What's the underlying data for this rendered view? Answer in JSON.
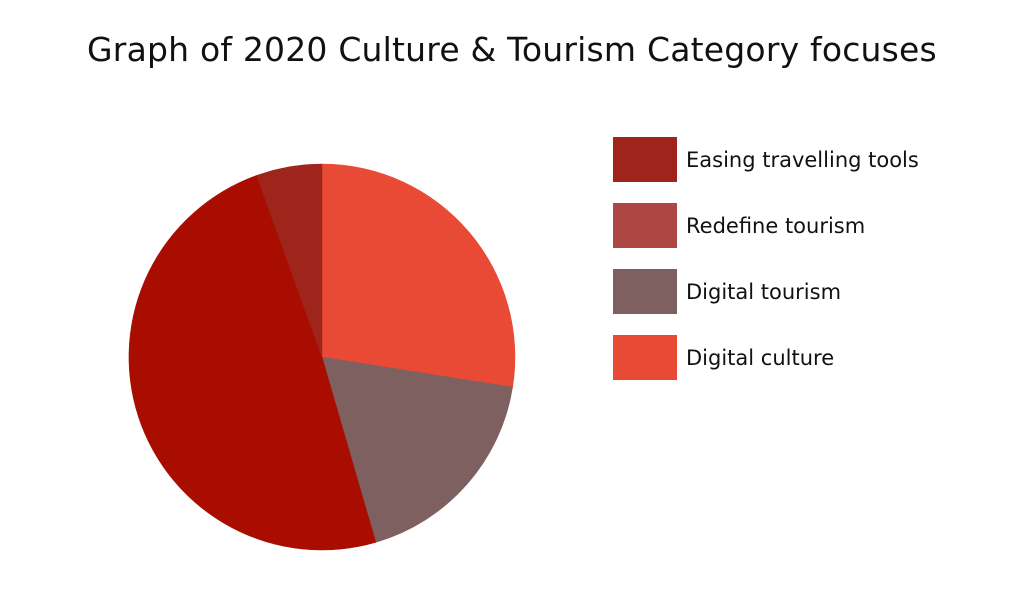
{
  "chart_data": {
    "type": "pie",
    "title": "Graph of 2020 Culture & Tourism Category focuses",
    "legend_position": "right",
    "slices": [
      {
        "label": "Digital culture",
        "value": 27.5,
        "color": "#e84a35"
      },
      {
        "label": "Digital tourism",
        "value": 18.0,
        "color": "#7f6060"
      },
      {
        "label": "Redefine tourism",
        "value": 49.0,
        "color": "#a80d00"
      },
      {
        "label": "Easing travelling tools",
        "value": 5.5,
        "color": "#9e241c"
      }
    ],
    "legend": [
      {
        "label": "Easing travelling tools",
        "color": "#9e241c"
      },
      {
        "label": "Redefine tourism",
        "color": "#ae4643"
      },
      {
        "label": "Digital tourism",
        "color": "#7f6060"
      },
      {
        "label": "Digital culture",
        "color": "#e84a35"
      }
    ]
  }
}
